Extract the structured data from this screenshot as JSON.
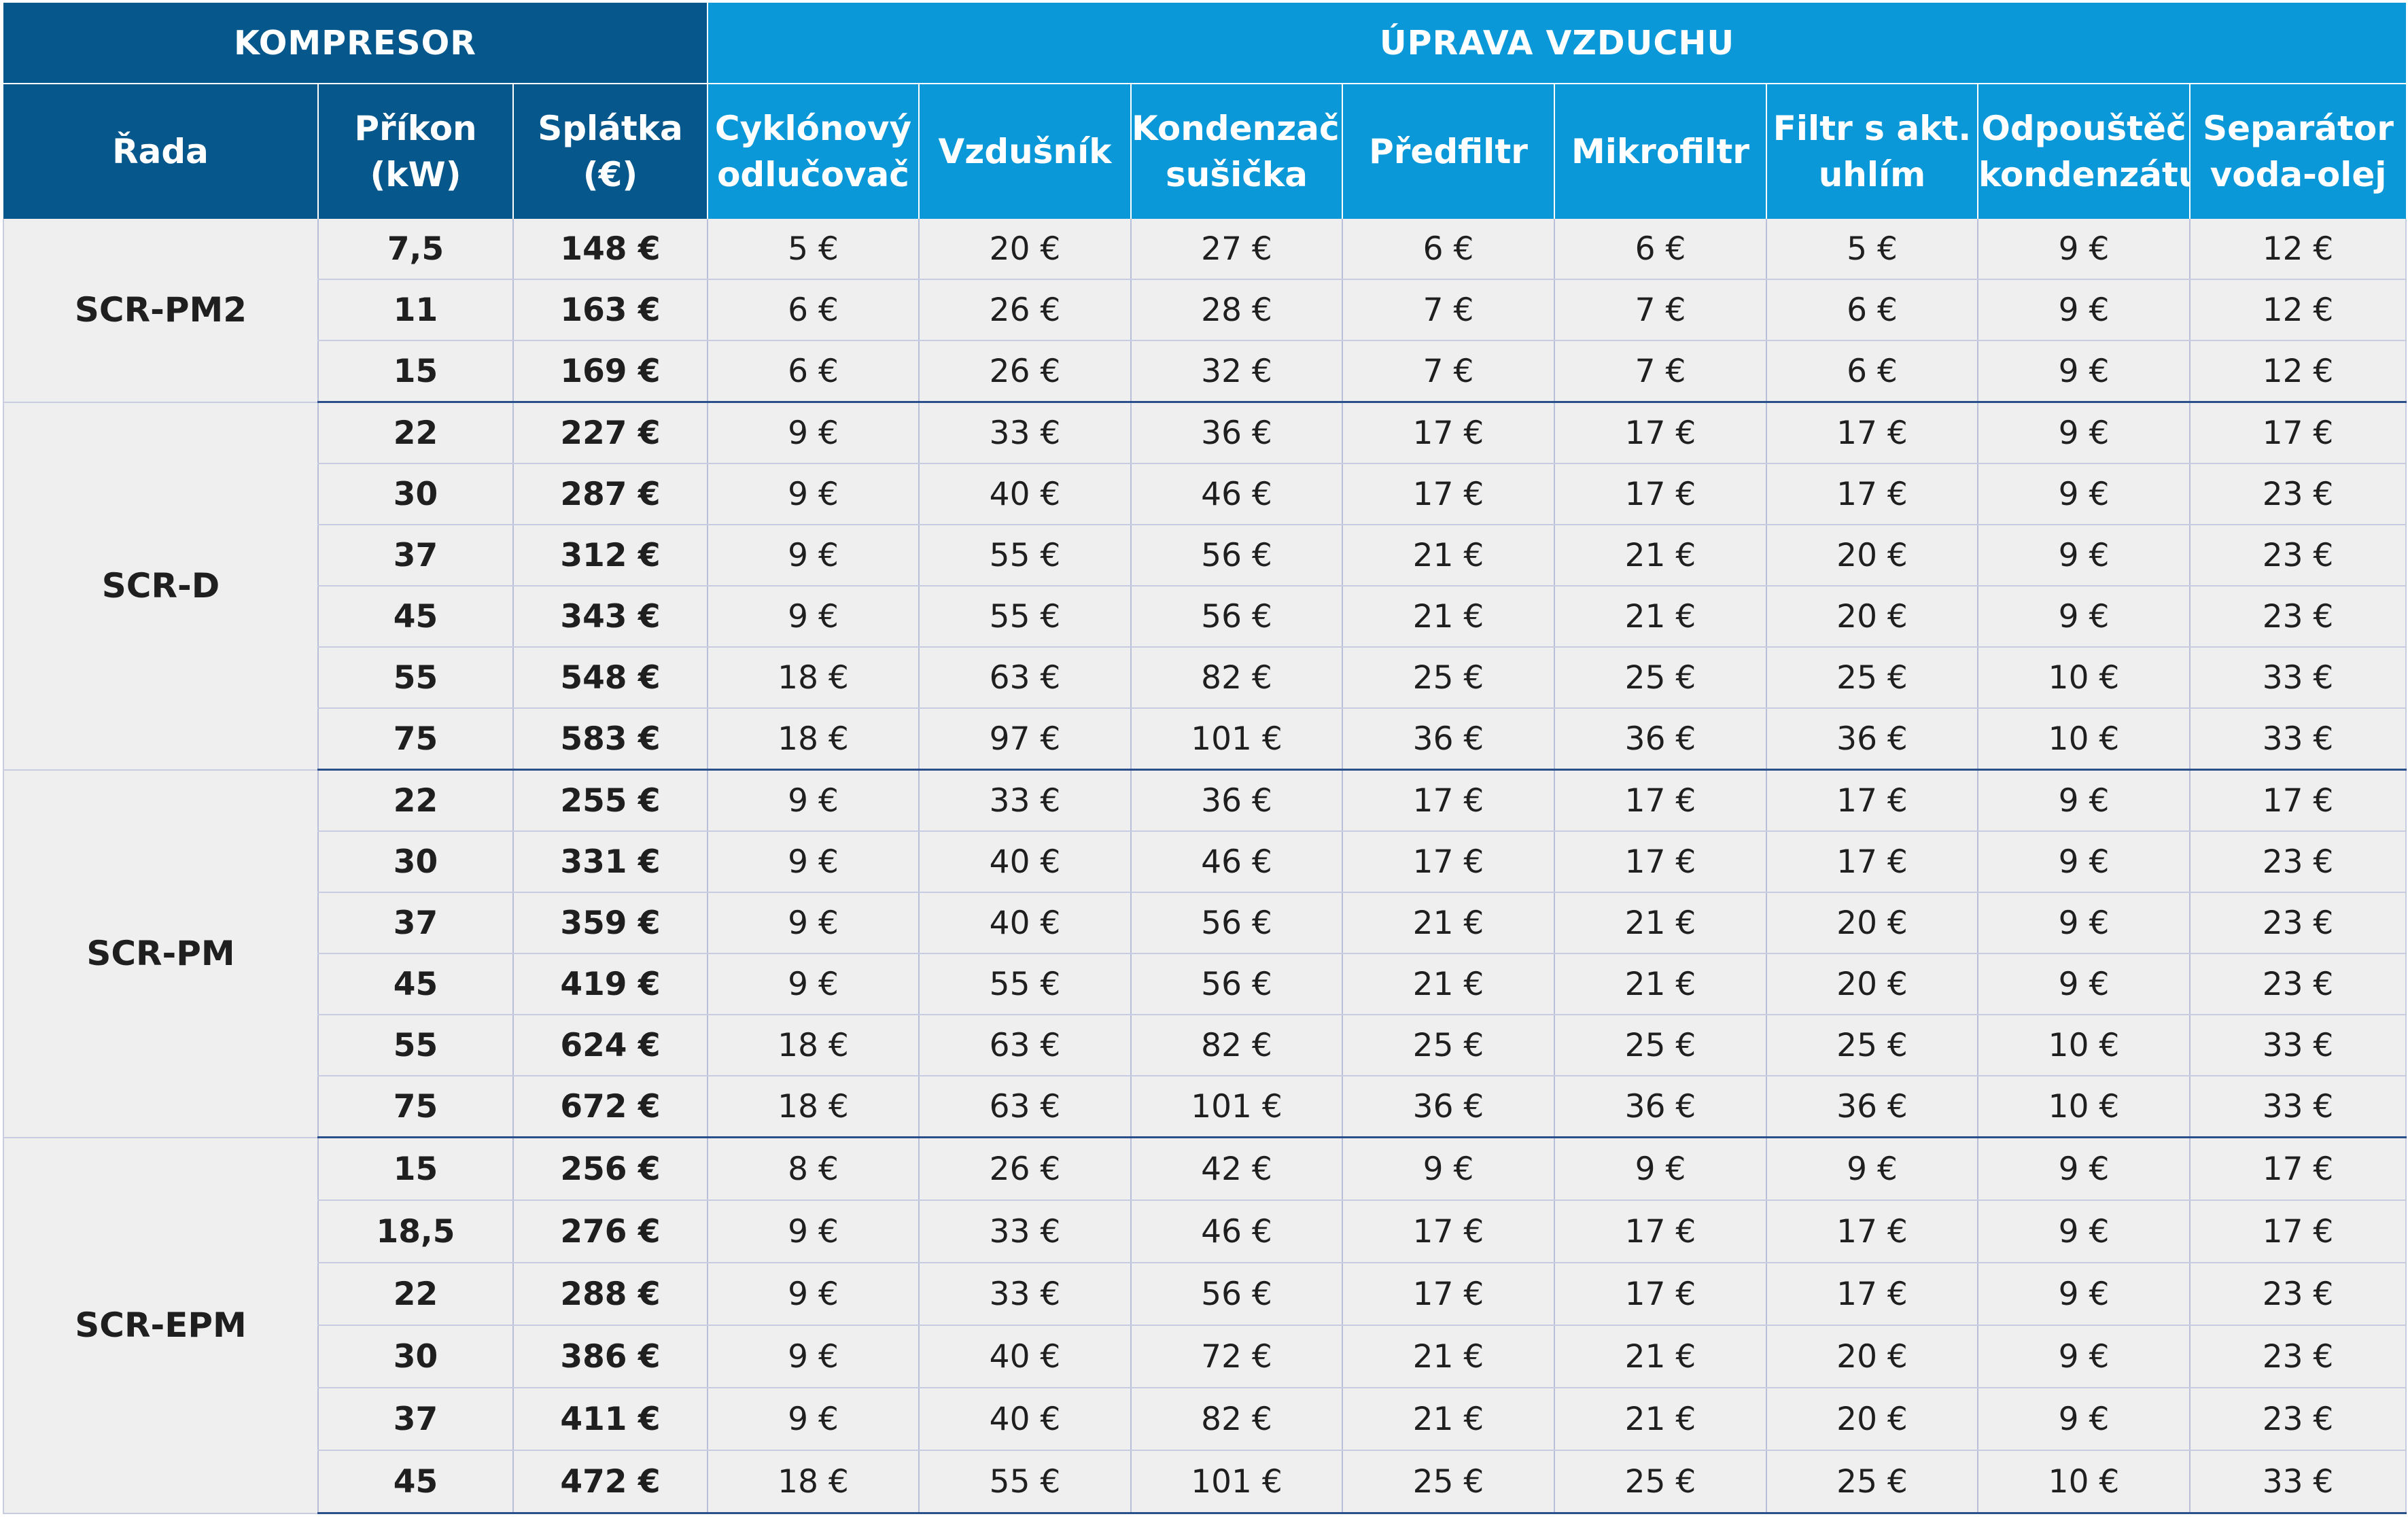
{
  "header": {
    "group_compressor": "KOMPRESOR",
    "group_air_treatment": "ÚPRAVA VZDUCHU",
    "columns": [
      {
        "line1": "Řada",
        "line2": ""
      },
      {
        "line1": "Příkon",
        "line2": "(kW)"
      },
      {
        "line1": "Splátka",
        "line2": "(€)"
      },
      {
        "line1": "Cyklónový",
        "line2": "odlučovač"
      },
      {
        "line1": "Vzdušník",
        "line2": ""
      },
      {
        "line1": "Kondenzační",
        "line2": "sušička"
      },
      {
        "line1": "Předfiltr",
        "line2": ""
      },
      {
        "line1": "Mikrofiltr",
        "line2": ""
      },
      {
        "line1": "Filtr s akt.",
        "line2": "uhlím"
      },
      {
        "line1": "Odpouštěč",
        "line2": "kondenzátu"
      },
      {
        "line1": "Separátor",
        "line2": "voda-olej"
      }
    ]
  },
  "groups": [
    {
      "series": "SCR-PM2",
      "rows": [
        [
          "7,5",
          "148 €",
          "5 €",
          "20 €",
          "27 €",
          "6 €",
          "6 €",
          "5 €",
          "9 €",
          "12 €"
        ],
        [
          "11",
          "163 €",
          "6 €",
          "26 €",
          "28 €",
          "7 €",
          "7 €",
          "6 €",
          "9 €",
          "12 €"
        ],
        [
          "15",
          "169 €",
          "6 €",
          "26 €",
          "32 €",
          "7 €",
          "7 €",
          "6 €",
          "9 €",
          "12 €"
        ]
      ]
    },
    {
      "series": "SCR-D",
      "rows": [
        [
          "22",
          "227 €",
          "9 €",
          "33 €",
          "36 €",
          "17 €",
          "17 €",
          "17 €",
          "9 €",
          "17 €"
        ],
        [
          "30",
          "287 €",
          "9 €",
          "40 €",
          "46 €",
          "17 €",
          "17 €",
          "17 €",
          "9 €",
          "23 €"
        ],
        [
          "37",
          "312 €",
          "9 €",
          "55 €",
          "56 €",
          "21 €",
          "21 €",
          "20 €",
          "9 €",
          "23 €"
        ],
        [
          "45",
          "343 €",
          "9 €",
          "55 €",
          "56 €",
          "21 €",
          "21 €",
          "20 €",
          "9 €",
          "23 €"
        ],
        [
          "55",
          "548 €",
          "18 €",
          "63 €",
          "82 €",
          "25 €",
          "25 €",
          "25 €",
          "10 €",
          "33 €"
        ],
        [
          "75",
          "583 €",
          "18 €",
          "97 €",
          "101 €",
          "36 €",
          "36 €",
          "36 €",
          "10 €",
          "33 €"
        ]
      ]
    },
    {
      "series": "SCR-PM",
      "rows": [
        [
          "22",
          "255 €",
          "9 €",
          "33 €",
          "36 €",
          "17 €",
          "17 €",
          "17 €",
          "9 €",
          "17 €"
        ],
        [
          "30",
          "331 €",
          "9 €",
          "40 €",
          "46 €",
          "17 €",
          "17 €",
          "17 €",
          "9 €",
          "23 €"
        ],
        [
          "37",
          "359 €",
          "9 €",
          "40 €",
          "56 €",
          "21 €",
          "21 €",
          "20 €",
          "9 €",
          "23 €"
        ],
        [
          "45",
          "419 €",
          "9 €",
          "55 €",
          "56 €",
          "21 €",
          "21 €",
          "20 €",
          "9 €",
          "23 €"
        ],
        [
          "55",
          "624 €",
          "18 €",
          "63 €",
          "82 €",
          "25 €",
          "25 €",
          "25 €",
          "10 €",
          "33 €"
        ],
        [
          "75",
          "672 €",
          "18 €",
          "63 €",
          "101 €",
          "36 €",
          "36 €",
          "36 €",
          "10 €",
          "33 €"
        ]
      ]
    },
    {
      "series": "SCR-EPM",
      "rows": [
        [
          "15",
          "256 €",
          "8 €",
          "26 €",
          "42 €",
          "9 €",
          "9 €",
          "9 €",
          "9 €",
          "17 €"
        ],
        [
          "18,5",
          "276 €",
          "9 €",
          "33 €",
          "46 €",
          "17 €",
          "17 €",
          "17 €",
          "9 €",
          "17 €"
        ],
        [
          "22",
          "288 €",
          "9 €",
          "33 €",
          "56 €",
          "17 €",
          "17 €",
          "17 €",
          "9 €",
          "23 €"
        ],
        [
          "30",
          "386 €",
          "9 €",
          "40 €",
          "72 €",
          "21 €",
          "21 €",
          "20 €",
          "9 €",
          "23 €"
        ],
        [
          "37",
          "411 €",
          "9 €",
          "40 €",
          "82 €",
          "21 €",
          "21 €",
          "20 €",
          "9 €",
          "23 €"
        ],
        [
          "45",
          "472 €",
          "18 €",
          "55 €",
          "101 €",
          "25 €",
          "25 €",
          "25 €",
          "10 €",
          "33 €"
        ]
      ]
    }
  ],
  "colors": {
    "header_dark": "#06578b",
    "header_light": "#0a98d8",
    "cell_background": "#efefef",
    "group_divider": "#2b4f8a"
  }
}
